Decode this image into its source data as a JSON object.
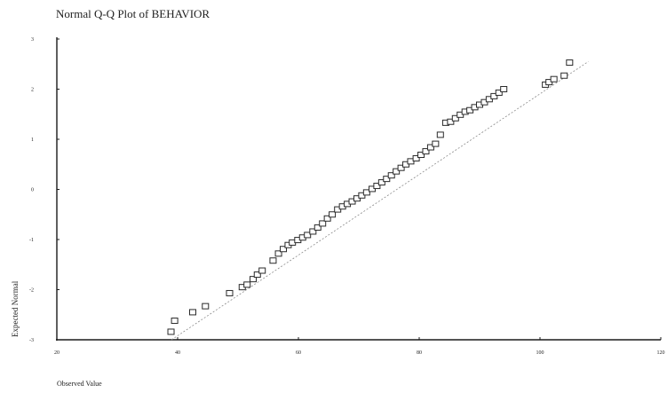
{
  "chart_data": {
    "type": "scatter",
    "title": "Normal Q-Q Plot of BEHAVIOR",
    "xlabel": "Observed Value",
    "ylabel": "Expected Normal",
    "xlim": [
      20,
      120
    ],
    "ylim": [
      -3,
      3
    ],
    "xticks": [
      20,
      40,
      60,
      80,
      100,
      120
    ],
    "yticks": [
      -3,
      -2,
      -1,
      0,
      1,
      2,
      3
    ],
    "xtick_labels": [
      "20",
      "40",
      "60",
      "80",
      "100",
      "120"
    ],
    "ytick_labels": [
      "-3",
      "-2",
      "-1",
      "0",
      "1",
      "2",
      "3"
    ],
    "grid": false,
    "reference_line": {
      "style": "dashed",
      "x": [
        39,
        108
      ],
      "y": [
        -3.0,
        2.55
      ]
    },
    "points": [
      {
        "x": 38.9,
        "y": -2.84
      },
      {
        "x": 39.5,
        "y": -2.62
      },
      {
        "x": 42.5,
        "y": -2.45
      },
      {
        "x": 44.6,
        "y": -2.33
      },
      {
        "x": 48.6,
        "y": -2.07
      },
      {
        "x": 50.7,
        "y": -1.95
      },
      {
        "x": 51.5,
        "y": -1.9
      },
      {
        "x": 52.5,
        "y": -1.79
      },
      {
        "x": 53.2,
        "y": -1.7
      },
      {
        "x": 54.0,
        "y": -1.62
      },
      {
        "x": 55.8,
        "y": -1.42
      },
      {
        "x": 56.7,
        "y": -1.28
      },
      {
        "x": 57.5,
        "y": -1.19
      },
      {
        "x": 58.3,
        "y": -1.11
      },
      {
        "x": 59.0,
        "y": -1.06
      },
      {
        "x": 59.9,
        "y": -1.01
      },
      {
        "x": 60.7,
        "y": -0.96
      },
      {
        "x": 61.5,
        "y": -0.91
      },
      {
        "x": 62.4,
        "y": -0.84
      },
      {
        "x": 63.2,
        "y": -0.76
      },
      {
        "x": 64.0,
        "y": -0.68
      },
      {
        "x": 64.8,
        "y": -0.58
      },
      {
        "x": 65.6,
        "y": -0.5
      },
      {
        "x": 66.5,
        "y": -0.4
      },
      {
        "x": 67.3,
        "y": -0.34
      },
      {
        "x": 68.1,
        "y": -0.29
      },
      {
        "x": 68.9,
        "y": -0.24
      },
      {
        "x": 69.7,
        "y": -0.18
      },
      {
        "x": 70.5,
        "y": -0.12
      },
      {
        "x": 71.3,
        "y": -0.06
      },
      {
        "x": 72.2,
        "y": 0.01
      },
      {
        "x": 73.0,
        "y": 0.07
      },
      {
        "x": 73.8,
        "y": 0.14
      },
      {
        "x": 74.6,
        "y": 0.21
      },
      {
        "x": 75.4,
        "y": 0.28
      },
      {
        "x": 76.2,
        "y": 0.36
      },
      {
        "x": 77.0,
        "y": 0.43
      },
      {
        "x": 77.8,
        "y": 0.5
      },
      {
        "x": 78.6,
        "y": 0.56
      },
      {
        "x": 79.5,
        "y": 0.62
      },
      {
        "x": 80.3,
        "y": 0.69
      },
      {
        "x": 81.1,
        "y": 0.76
      },
      {
        "x": 81.9,
        "y": 0.84
      },
      {
        "x": 82.7,
        "y": 0.91
      },
      {
        "x": 83.5,
        "y": 1.09
      },
      {
        "x": 84.4,
        "y": 1.33
      },
      {
        "x": 85.2,
        "y": 1.35
      },
      {
        "x": 86.0,
        "y": 1.42
      },
      {
        "x": 86.8,
        "y": 1.49
      },
      {
        "x": 87.6,
        "y": 1.55
      },
      {
        "x": 88.4,
        "y": 1.58
      },
      {
        "x": 89.2,
        "y": 1.64
      },
      {
        "x": 90.0,
        "y": 1.69
      },
      {
        "x": 90.8,
        "y": 1.74
      },
      {
        "x": 91.6,
        "y": 1.8
      },
      {
        "x": 92.4,
        "y": 1.86
      },
      {
        "x": 93.2,
        "y": 1.93
      },
      {
        "x": 94.0,
        "y": 2.0
      },
      {
        "x": 100.9,
        "y": 2.09
      },
      {
        "x": 101.5,
        "y": 2.14
      },
      {
        "x": 102.3,
        "y": 2.2
      },
      {
        "x": 104.0,
        "y": 2.27
      },
      {
        "x": 104.9,
        "y": 2.53
      }
    ]
  },
  "colors": {
    "axis": "#1a1a1a",
    "marker_stroke": "#2a2a2a",
    "marker_fill": "#ffffff",
    "reference_line": "#8a8a8a"
  }
}
